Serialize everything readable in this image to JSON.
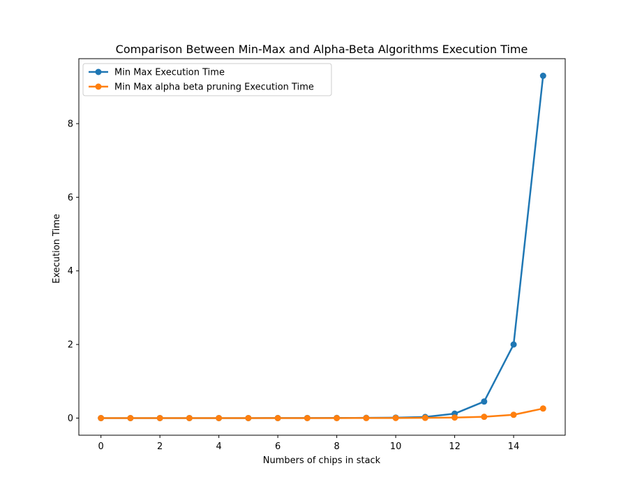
{
  "chart_data": {
    "type": "line",
    "title": "Comparison Between Min-Max and Alpha-Beta Algorithms Execution Time",
    "xlabel": "Numbers of chips in stack",
    "ylabel": "Execution Time",
    "xlim": [
      -0.75,
      15.75
    ],
    "ylim": [
      -0.465,
      9.765
    ],
    "xticks": [
      0,
      2,
      4,
      6,
      8,
      10,
      12,
      14
    ],
    "yticks": [
      0,
      2,
      4,
      6,
      8
    ],
    "grid": false,
    "legend_position": "top-left",
    "x": [
      0,
      1,
      2,
      3,
      4,
      5,
      6,
      7,
      8,
      9,
      10,
      11,
      12,
      13,
      14,
      15
    ],
    "series": [
      {
        "name": "Min Max Execution Time",
        "color": "#1f77b4",
        "values": [
          0.0,
          0.0,
          0.001,
          0.001,
          0.001,
          0.001,
          0.002,
          0.003,
          0.004,
          0.006,
          0.012,
          0.03,
          0.12,
          0.45,
          2.0,
          9.3
        ]
      },
      {
        "name": "Min Max alpha beta pruning Execution Time",
        "color": "#ff7f0e",
        "values": [
          0.0,
          0.0,
          0.0,
          0.0,
          0.0,
          0.0,
          0.0,
          0.0,
          0.001,
          0.002,
          0.003,
          0.006,
          0.015,
          0.035,
          0.09,
          0.26
        ]
      }
    ]
  }
}
